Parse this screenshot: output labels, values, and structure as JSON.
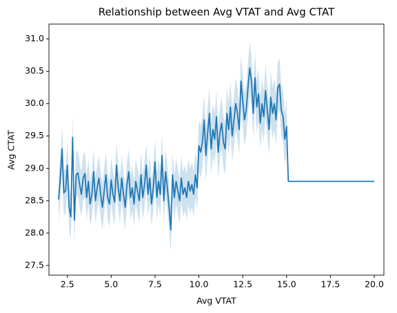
{
  "chart_data": {
    "type": "line",
    "title": "Relationship between Avg VTAT and Avg CTAT",
    "xlabel": "Avg VTAT",
    "ylabel": "Avg CTAT",
    "color": "#1f77b4",
    "xlim": [
      1.45,
      20.55
    ],
    "ylim": [
      27.35,
      31.23
    ],
    "xticks": [
      2.5,
      {
        "value": 5,
        "label": "5.0"
      },
      7.5,
      {
        "value": 10,
        "label": "10.0"
      },
      12.5,
      {
        "value": 15,
        "label": "15.0"
      },
      17.5,
      {
        "value": 20,
        "label": "20.0"
      }
    ],
    "yticks": [
      27.5,
      {
        "value": 28,
        "label": "28.0"
      },
      28.5,
      {
        "value": 29,
        "label": "29.0"
      },
      29.5,
      {
        "value": 30,
        "label": "30.0"
      },
      30.5,
      {
        "value": 31,
        "label": "31.0"
      }
    ],
    "grid": false,
    "x": [
      2,
      2.1,
      2.2,
      2.3,
      2.4,
      2.5,
      2.6,
      2.7,
      2.8,
      2.9,
      3,
      3.1,
      3.2,
      3.3,
      3.4,
      3.5,
      3.6,
      3.7,
      3.8,
      3.9,
      4,
      4.1,
      4.2,
      4.3,
      4.4,
      4.5,
      4.6,
      4.7,
      4.8,
      4.9,
      5,
      5.1,
      5.2,
      5.3,
      5.4,
      5.5,
      5.6,
      5.7,
      5.8,
      5.9,
      6,
      6.1,
      6.2,
      6.3,
      6.4,
      6.5,
      6.6,
      6.7,
      6.8,
      6.9,
      7,
      7.1,
      7.2,
      7.3,
      7.4,
      7.5,
      7.6,
      7.7,
      7.8,
      7.9,
      8,
      8.1,
      8.2,
      8.3,
      8.4,
      8.5,
      8.6,
      8.7,
      8.8,
      8.9,
      9,
      9.1,
      9.2,
      9.3,
      9.4,
      9.5,
      9.6,
      9.7,
      9.8,
      9.9,
      10,
      10.1,
      10.2,
      10.3,
      10.4,
      10.5,
      10.6,
      10.7,
      10.8,
      10.9,
      11,
      11.1,
      11.2,
      11.3,
      11.4,
      11.5,
      11.6,
      11.7,
      11.8,
      11.9,
      12,
      12.1,
      12.2,
      12.3,
      12.4,
      12.5,
      12.6,
      12.7,
      12.8,
      12.9,
      13,
      13.1,
      13.2,
      13.3,
      13.4,
      13.5,
      13.6,
      13.7,
      13.8,
      13.9,
      14,
      14.1,
      14.2,
      14.3,
      14.4,
      14.5,
      14.6,
      14.7,
      14.8,
      14.9,
      15,
      15.1,
      20
    ],
    "values": [
      28.52,
      28.85,
      29.3,
      28.62,
      28.66,
      29.05,
      28.4,
      28.25,
      29.48,
      28.2,
      28.9,
      28.93,
      28.75,
      28.6,
      28.85,
      28.92,
      28.55,
      28.8,
      28.45,
      28.6,
      28.95,
      28.5,
      28.7,
      28.85,
      28.6,
      28.4,
      28.65,
      28.9,
      28.55,
      28.45,
      28.82,
      28.6,
      28.48,
      29.05,
      28.7,
      28.5,
      28.85,
      28.6,
      28.4,
      28.75,
      28.95,
      28.55,
      28.7,
      28.45,
      28.8,
      28.65,
      28.5,
      28.9,
      28.55,
      28.75,
      29.05,
      28.6,
      28.85,
      28.45,
      28.7,
      29.1,
      28.55,
      28.8,
      28.6,
      29.2,
      28.5,
      28.95,
      28.7,
      28.4,
      28.05,
      28.9,
      28.55,
      28.8,
      28.65,
      28.5,
      28.85,
      28.6,
      28.7,
      28.55,
      28.8,
      28.65,
      28.75,
      28.6,
      28.9,
      28.7,
      29.35,
      29.25,
      29.4,
      29.75,
      29.2,
      29.55,
      29.85,
      29.3,
      29.6,
      29.45,
      29.8,
      29.25,
      29.55,
      29.7,
      29.4,
      29.3,
      29.85,
      29.6,
      29.95,
      29.5,
      29.75,
      30.0,
      29.85,
      29.6,
      30.35,
      30.05,
      29.75,
      29.9,
      30.25,
      30.55,
      30.35,
      29.85,
      30.4,
      29.95,
      30.15,
      29.7,
      30.0,
      29.8,
      30.2,
      29.9,
      29.6,
      30.1,
      29.85,
      30.0,
      29.75,
      30.25,
      30.3,
      29.9,
      29.8,
      29.45,
      29.65,
      28.8,
      28.8
    ],
    "lower": [
      28.17,
      28.5,
      28.95,
      28.27,
      28.31,
      28.7,
      28.05,
      27.9,
      29.13,
      27.85,
      28.55,
      28.58,
      28.4,
      28.25,
      28.5,
      28.57,
      28.2,
      28.45,
      28.1,
      28.25,
      28.6,
      28.15,
      28.35,
      28.5,
      28.25,
      28.05,
      28.3,
      28.55,
      28.2,
      28.1,
      28.47,
      28.25,
      28.13,
      28.7,
      28.35,
      28.15,
      28.5,
      28.25,
      28.05,
      28.4,
      28.6,
      28.2,
      28.35,
      28.1,
      28.45,
      28.3,
      28.15,
      28.55,
      28.2,
      28.4,
      28.7,
      28.25,
      28.5,
      28.1,
      28.35,
      28.75,
      28.2,
      28.45,
      28.25,
      28.85,
      28.15,
      28.6,
      28.35,
      28.05,
      27.7,
      28.55,
      28.2,
      28.45,
      28.3,
      28.15,
      28.5,
      28.25,
      28.35,
      28.2,
      28.45,
      28.3,
      28.4,
      28.25,
      28.55,
      28.35,
      28.95,
      28.85,
      29.0,
      29.35,
      28.8,
      29.15,
      29.45,
      28.9,
      29.2,
      29.05,
      29.4,
      28.85,
      29.15,
      29.3,
      29.0,
      28.9,
      29.45,
      29.2,
      29.55,
      29.1,
      29.35,
      29.6,
      29.45,
      29.2,
      29.95,
      29.65,
      29.35,
      29.5,
      29.85,
      30.15,
      29.95,
      29.45,
      30.0,
      29.55,
      29.75,
      29.3,
      29.6,
      29.4,
      29.8,
      29.5,
      29.2,
      29.7,
      29.45,
      29.6,
      29.35,
      29.85,
      29.9,
      29.5,
      29.4,
      29.05,
      29.25,
      28.8,
      28.8
    ],
    "upper": [
      28.87,
      29.2,
      29.65,
      28.97,
      29.01,
      29.4,
      28.75,
      28.6,
      29.83,
      28.55,
      29.25,
      29.28,
      29.1,
      28.95,
      29.2,
      29.27,
      28.9,
      29.15,
      28.8,
      28.95,
      29.3,
      28.85,
      29.05,
      29.2,
      28.95,
      28.75,
      29.0,
      29.25,
      28.9,
      28.8,
      29.17,
      28.95,
      28.83,
      29.4,
      29.05,
      28.85,
      29.2,
      28.95,
      28.75,
      29.1,
      29.3,
      28.9,
      29.05,
      28.8,
      29.15,
      29.0,
      28.85,
      29.25,
      28.9,
      29.1,
      29.4,
      28.95,
      29.2,
      28.8,
      29.05,
      29.45,
      28.9,
      29.15,
      28.95,
      29.55,
      28.85,
      29.3,
      29.05,
      28.75,
      28.4,
      29.25,
      28.9,
      29.15,
      29.0,
      28.85,
      29.2,
      28.95,
      29.05,
      28.9,
      29.15,
      29.0,
      29.1,
      28.95,
      29.25,
      29.05,
      29.75,
      29.65,
      29.8,
      30.15,
      29.6,
      29.95,
      30.25,
      29.7,
      30.0,
      29.85,
      30.2,
      29.65,
      29.95,
      30.1,
      29.8,
      29.7,
      30.25,
      30.0,
      30.35,
      29.9,
      30.15,
      30.4,
      30.25,
      30.0,
      30.75,
      30.45,
      30.15,
      30.3,
      30.65,
      30.95,
      30.75,
      30.25,
      30.8,
      30.35,
      30.55,
      30.1,
      30.4,
      30.2,
      30.6,
      30.3,
      30.0,
      30.5,
      30.25,
      30.4,
      30.15,
      30.65,
      30.7,
      30.3,
      30.2,
      29.85,
      30.05,
      28.8,
      28.8
    ]
  }
}
